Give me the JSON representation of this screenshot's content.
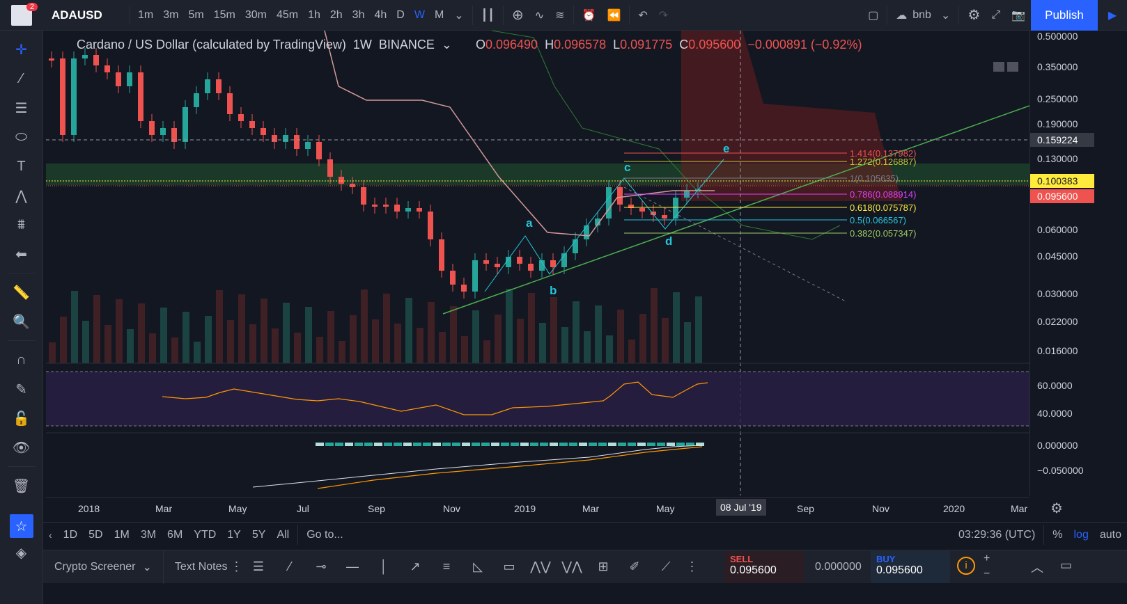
{
  "header": {
    "notification_count": "2",
    "symbol": "ADAUSD",
    "intervals": [
      "1m",
      "3m",
      "5m",
      "15m",
      "30m",
      "45m",
      "1h",
      "2h",
      "3h",
      "4h",
      "D",
      "W",
      "M"
    ],
    "active_interval": "W",
    "layout_name": "bnb",
    "publish_label": "Publish"
  },
  "legend": {
    "title": "Cardano / US Dollar (calculated by TradingView)",
    "interval": "1W",
    "exchange": "BINANCE",
    "open_label": "O",
    "open": "0.096490",
    "high_label": "H",
    "high": "0.096578",
    "low_label": "L",
    "low": "0.091775",
    "close_label": "C",
    "close": "0.095600",
    "change": "−0.000891 (−0.92%)"
  },
  "price_axis": {
    "labels": [
      "0.500000",
      "0.350000",
      "0.250000",
      "0.190000",
      "0.130000",
      "0.060000",
      "0.045000",
      "0.030000",
      "0.022000",
      "0.016000"
    ],
    "crosshair_price": "0.159224",
    "yellow_tag": "0.100383",
    "last_price": "0.095600",
    "rsi_labels": [
      "60.0000",
      "40.0000"
    ],
    "macd_labels": [
      "0.000000",
      "−0.050000"
    ]
  },
  "time_axis": {
    "labels": [
      "2018",
      "Mar",
      "May",
      "Jul",
      "Sep",
      "Nov",
      "2019",
      "Mar",
      "May",
      "Sep",
      "Nov",
      "2020",
      "Mar"
    ],
    "crosshair_date": "08 Jul '19"
  },
  "fib": {
    "levels": [
      {
        "label": "1.414(0.137982)",
        "color": "#ef5350"
      },
      {
        "label": "1.272(0.126887)",
        "color": "#c0ca33"
      },
      {
        "label": "1(0.105635)",
        "color": "#787b86"
      },
      {
        "label": "0.786(0.088914)",
        "color": "#e040fb"
      },
      {
        "label": "0.618(0.075787)",
        "color": "#ffeb3b"
      },
      {
        "label": "0.5(0.066567)",
        "color": "#26c6da"
      },
      {
        "label": "0.382(0.057347)",
        "color": "#9ccc65"
      }
    ]
  },
  "wave_labels": [
    "a",
    "b",
    "c",
    "d",
    "e"
  ],
  "range": {
    "buttons": [
      "1D",
      "5D",
      "1M",
      "3M",
      "6M",
      "YTD",
      "1Y",
      "5Y",
      "All"
    ],
    "goto": "Go to...",
    "clock": "03:29:36 (UTC)",
    "percent": "%",
    "log": "log",
    "auto": "auto"
  },
  "bottom": {
    "tabs": [
      "Crypto Screener",
      "Text Notes"
    ],
    "sell_label": "SELL",
    "sell_price": "0.095600",
    "spread": "0.000000",
    "buy_label": "BUY",
    "buy_price": "0.095600"
  },
  "colors": {
    "up": "#26a69a",
    "down": "#ef5350",
    "accent": "#2962ff",
    "yellow": "#ffeb3b"
  }
}
